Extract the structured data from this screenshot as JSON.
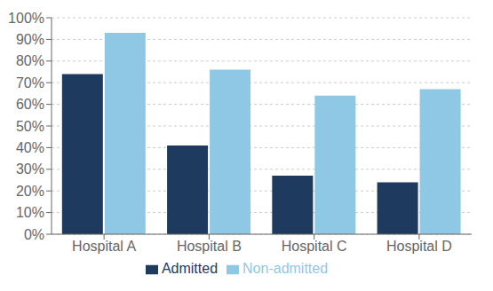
{
  "chart_data": {
    "type": "bar",
    "categories": [
      "Hospital A",
      "Hospital B",
      "Hospital C",
      "Hospital D"
    ],
    "series": [
      {
        "name": "Admitted",
        "color": "#1e3a5f",
        "values": [
          74,
          41,
          27,
          24
        ]
      },
      {
        "name": "Non-admitted",
        "color": "#8fc8e5",
        "values": [
          93,
          76,
          64,
          67
        ]
      }
    ],
    "ylim": [
      0,
      100
    ],
    "yticks": [
      {
        "value": 0,
        "label": "0%"
      },
      {
        "value": 10,
        "label": "10%"
      },
      {
        "value": 20,
        "label": "20%"
      },
      {
        "value": 30,
        "label": "30%"
      },
      {
        "value": 40,
        "label": "40%"
      },
      {
        "value": 50,
        "label": "50%"
      },
      {
        "value": 60,
        "label": "60%"
      },
      {
        "value": 70,
        "label": "70%"
      },
      {
        "value": 80,
        "label": "80%"
      },
      {
        "value": 90,
        "label": "90%"
      },
      {
        "value": 100,
        "label": "100%"
      }
    ],
    "grid": true,
    "legend": "bottom"
  }
}
